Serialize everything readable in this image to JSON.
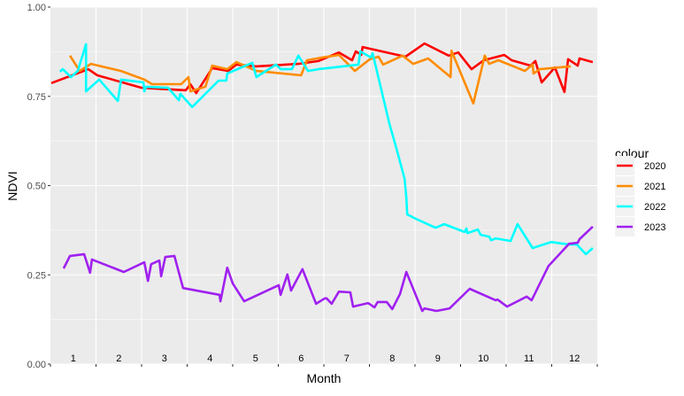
{
  "chart_data": {
    "type": "line",
    "title": "",
    "xlabel": "Month",
    "ylabel": "NDVI",
    "xlim": [
      0,
      12
    ],
    "ylim": [
      0,
      1
    ],
    "yticks": [
      "0.00",
      "0.25",
      "0.50",
      "0.75",
      "1.00"
    ],
    "ytick_values": [
      0,
      0.25,
      0.5,
      0.75,
      1
    ],
    "month_labels": [
      "1",
      "2",
      "3",
      "4",
      "5",
      "6",
      "7",
      "8",
      "9",
      "10",
      "11",
      "12"
    ],
    "grid": true,
    "panel_background": "#EBEBEB",
    "legend": {
      "title": "colour",
      "position": "right"
    },
    "series": [
      {
        "name": "2020",
        "color": "#FF0000",
        "points": [
          [
            0.02,
            0.787
          ],
          [
            0.83,
            0.826
          ],
          [
            1.03,
            0.809
          ],
          [
            2.0,
            0.774
          ],
          [
            2.97,
            0.767
          ],
          [
            3.07,
            0.784
          ],
          [
            3.2,
            0.759
          ],
          [
            3.55,
            0.829
          ],
          [
            3.9,
            0.821
          ],
          [
            4.08,
            0.839
          ],
          [
            4.52,
            0.834
          ],
          [
            5.44,
            0.841
          ],
          [
            5.88,
            0.849
          ],
          [
            6.33,
            0.873
          ],
          [
            6.62,
            0.851
          ],
          [
            6.7,
            0.876
          ],
          [
            6.82,
            0.866
          ],
          [
            6.85,
            0.888
          ],
          [
            7.79,
            0.861
          ],
          [
            8.21,
            0.898
          ],
          [
            8.74,
            0.864
          ],
          [
            8.95,
            0.873
          ],
          [
            9.24,
            0.826
          ],
          [
            9.51,
            0.851
          ],
          [
            9.96,
            0.866
          ],
          [
            10.12,
            0.851
          ],
          [
            10.54,
            0.836
          ],
          [
            10.64,
            0.849
          ],
          [
            10.78,
            0.789
          ],
          [
            11.07,
            0.831
          ],
          [
            11.28,
            0.762
          ],
          [
            11.36,
            0.854
          ],
          [
            11.57,
            0.836
          ],
          [
            11.61,
            0.856
          ],
          [
            11.9,
            0.846
          ]
        ]
      },
      {
        "name": "2021",
        "color": "#FF8C00",
        "points": [
          [
            0.43,
            0.864
          ],
          [
            0.64,
            0.821
          ],
          [
            0.89,
            0.841
          ],
          [
            1.55,
            0.821
          ],
          [
            2.06,
            0.797
          ],
          [
            2.23,
            0.784
          ],
          [
            2.87,
            0.784
          ],
          [
            3.03,
            0.804
          ],
          [
            3.07,
            0.764
          ],
          [
            3.4,
            0.777
          ],
          [
            3.55,
            0.836
          ],
          [
            3.88,
            0.826
          ],
          [
            4.08,
            0.846
          ],
          [
            4.52,
            0.821
          ],
          [
            5.5,
            0.809
          ],
          [
            5.63,
            0.851
          ],
          [
            5.98,
            0.859
          ],
          [
            6.33,
            0.866
          ],
          [
            6.68,
            0.821
          ],
          [
            7.01,
            0.854
          ],
          [
            7.2,
            0.861
          ],
          [
            7.3,
            0.839
          ],
          [
            7.73,
            0.864
          ],
          [
            7.96,
            0.841
          ],
          [
            8.29,
            0.856
          ],
          [
            8.78,
            0.804
          ],
          [
            8.8,
            0.878
          ],
          [
            9.28,
            0.73
          ],
          [
            9.53,
            0.864
          ],
          [
            9.63,
            0.841
          ],
          [
            9.83,
            0.851
          ],
          [
            10.41,
            0.821
          ],
          [
            10.58,
            0.839
          ],
          [
            10.6,
            0.814
          ],
          [
            10.74,
            0.826
          ],
          [
            11.42,
            0.834
          ]
        ]
      },
      {
        "name": "2022",
        "color": "#00FFFF",
        "points": [
          [
            0.21,
            0.819
          ],
          [
            0.27,
            0.826
          ],
          [
            0.45,
            0.804
          ],
          [
            0.6,
            0.821
          ],
          [
            0.78,
            0.896
          ],
          [
            0.78,
            0.764
          ],
          [
            1.07,
            0.797
          ],
          [
            1.48,
            0.737
          ],
          [
            1.55,
            0.797
          ],
          [
            2.04,
            0.789
          ],
          [
            2.06,
            0.764
          ],
          [
            2.1,
            0.777
          ],
          [
            2.58,
            0.774
          ],
          [
            2.82,
            0.739
          ],
          [
            2.85,
            0.757
          ],
          [
            3.11,
            0.72
          ],
          [
            3.69,
            0.794
          ],
          [
            3.86,
            0.794
          ],
          [
            3.88,
            0.814
          ],
          [
            4.43,
            0.844
          ],
          [
            4.52,
            0.804
          ],
          [
            4.95,
            0.839
          ],
          [
            5.05,
            0.826
          ],
          [
            5.3,
            0.826
          ],
          [
            5.44,
            0.864
          ],
          [
            5.65,
            0.821
          ],
          [
            5.88,
            0.826
          ],
          [
            6.76,
            0.839
          ],
          [
            6.8,
            0.876
          ],
          [
            7.03,
            0.859
          ],
          [
            7.07,
            0.871
          ],
          [
            7.44,
            0.672
          ],
          [
            7.59,
            0.605
          ],
          [
            7.77,
            0.519
          ],
          [
            7.81,
            0.467
          ],
          [
            7.83,
            0.419
          ],
          [
            8.02,
            0.407
          ],
          [
            8.45,
            0.382
          ],
          [
            8.64,
            0.392
          ],
          [
            9.09,
            0.37
          ],
          [
            9.13,
            0.38
          ],
          [
            9.15,
            0.367
          ],
          [
            9.38,
            0.377
          ],
          [
            9.44,
            0.362
          ],
          [
            9.63,
            0.357
          ],
          [
            9.67,
            0.347
          ],
          [
            9.77,
            0.352
          ],
          [
            10.1,
            0.345
          ],
          [
            10.25,
            0.392
          ],
          [
            10.58,
            0.325
          ],
          [
            10.99,
            0.342
          ],
          [
            11.38,
            0.335
          ],
          [
            11.55,
            0.335
          ],
          [
            11.75,
            0.308
          ],
          [
            11.9,
            0.325
          ]
        ]
      },
      {
        "name": "2023",
        "color": "#A020F0",
        "points": [
          [
            0.29,
            0.268
          ],
          [
            0.43,
            0.303
          ],
          [
            0.74,
            0.308
          ],
          [
            0.87,
            0.256
          ],
          [
            0.91,
            0.293
          ],
          [
            1.61,
            0.258
          ],
          [
            2.06,
            0.285
          ],
          [
            2.14,
            0.233
          ],
          [
            2.21,
            0.28
          ],
          [
            2.39,
            0.29
          ],
          [
            2.43,
            0.246
          ],
          [
            2.52,
            0.3
          ],
          [
            2.72,
            0.303
          ],
          [
            2.91,
            0.213
          ],
          [
            3.71,
            0.194
          ],
          [
            3.73,
            0.176
          ],
          [
            3.88,
            0.27
          ],
          [
            4.0,
            0.226
          ],
          [
            4.25,
            0.176
          ],
          [
            5.01,
            0.221
          ],
          [
            5.05,
            0.194
          ],
          [
            5.2,
            0.251
          ],
          [
            5.28,
            0.206
          ],
          [
            5.53,
            0.266
          ],
          [
            5.83,
            0.169
          ],
          [
            6.02,
            0.184
          ],
          [
            6.06,
            0.184
          ],
          [
            6.17,
            0.169
          ],
          [
            6.33,
            0.203
          ],
          [
            6.58,
            0.201
          ],
          [
            6.64,
            0.161
          ],
          [
            6.97,
            0.171
          ],
          [
            7.11,
            0.159
          ],
          [
            7.18,
            0.174
          ],
          [
            7.38,
            0.174
          ],
          [
            7.5,
            0.154
          ],
          [
            7.67,
            0.196
          ],
          [
            7.81,
            0.258
          ],
          [
            8.16,
            0.149
          ],
          [
            8.21,
            0.156
          ],
          [
            8.47,
            0.149
          ],
          [
            8.76,
            0.156
          ],
          [
            9.2,
            0.211
          ],
          [
            9.77,
            0.179
          ],
          [
            9.81,
            0.181
          ],
          [
            10.02,
            0.161
          ],
          [
            10.45,
            0.189
          ],
          [
            10.56,
            0.179
          ],
          [
            10.93,
            0.275
          ],
          [
            11.38,
            0.337
          ],
          [
            11.57,
            0.34
          ],
          [
            11.61,
            0.35
          ],
          [
            11.9,
            0.385
          ]
        ]
      }
    ]
  }
}
